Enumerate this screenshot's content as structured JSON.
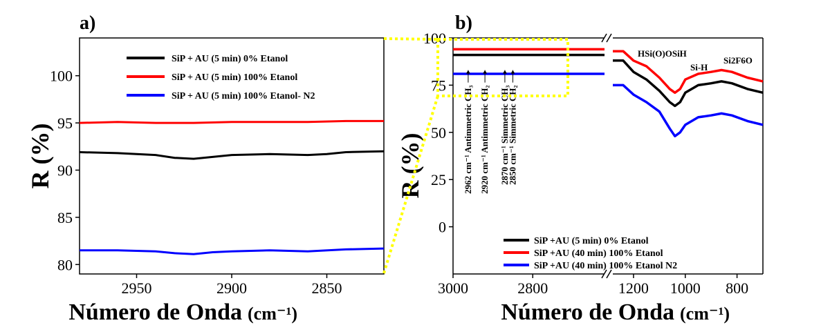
{
  "chart_data": [
    {
      "panel_label": "a)",
      "type": "line",
      "xlabel": "Número de Onda",
      "xlabel_unit": "(cm⁻¹)",
      "ylabel": "R (%)",
      "xlim": [
        2980,
        2820
      ],
      "ylim": [
        79,
        104
      ],
      "x_ticks": [
        2950,
        2900,
        2850
      ],
      "y_ticks": [
        80,
        85,
        90,
        95,
        100
      ],
      "legend_position": "top-right",
      "series": [
        {
          "name": "SiP + AU  (5 min) 0% Etanol",
          "color": "#000000",
          "x": [
            2980,
            2960,
            2940,
            2930,
            2920,
            2910,
            2900,
            2880,
            2860,
            2850,
            2840,
            2820
          ],
          "y": [
            91.9,
            91.8,
            91.6,
            91.3,
            91.2,
            91.4,
            91.6,
            91.7,
            91.6,
            91.7,
            91.9,
            92.0
          ]
        },
        {
          "name": "SiP + AU (5 min) 100% Etanol",
          "color": "#ff0000",
          "x": [
            2980,
            2960,
            2940,
            2920,
            2900,
            2880,
            2860,
            2840,
            2820
          ],
          "y": [
            95.0,
            95.1,
            95.0,
            95.0,
            95.1,
            95.1,
            95.1,
            95.2,
            95.2
          ]
        },
        {
          "name": "SiP + AU (5 min) 100% Etanol- N2",
          "color": "#0000ff",
          "x": [
            2980,
            2960,
            2940,
            2930,
            2920,
            2910,
            2900,
            2880,
            2860,
            2840,
            2820
          ],
          "y": [
            81.5,
            81.5,
            81.4,
            81.2,
            81.1,
            81.3,
            81.4,
            81.5,
            81.4,
            81.6,
            81.7
          ]
        }
      ]
    },
    {
      "panel_label": "b)",
      "type": "line",
      "xlabel": "Número de Onda",
      "xlabel_unit": "(cm⁻¹)",
      "ylabel": "R (%)",
      "x_segments": [
        [
          3000,
          2620
        ],
        [
          1280,
          700
        ]
      ],
      "ylim": [
        -25,
        100
      ],
      "x_ticks": [
        3000,
        2800,
        1200,
        1000,
        800
      ],
      "y_ticks": [
        0,
        25,
        50,
        75,
        100
      ],
      "legend_position": "bottom-right",
      "annotations": [
        "HSi(O)OSiH",
        "Si-H",
        "Si2F6O"
      ],
      "vertical_labels": [
        {
          "text": "2962 cm⁻¹ Antimmetric CH₃",
          "x": 2962
        },
        {
          "text": "2920 cm⁻¹ Antimmetric CH₂",
          "x": 2920
        },
        {
          "text": "2870 cm⁻¹ Simmetric CH₃",
          "x": 2870
        },
        {
          "text": "2850 cm⁻¹ Simmetric CH₂",
          "x": 2850
        }
      ],
      "series": [
        {
          "name": "SiP +AU (5 min) 0% Etanol",
          "color": "#000000",
          "x": [
            3000,
            2800,
            2620,
            1280,
            1240,
            1200,
            1150,
            1100,
            1060,
            1040,
            1020,
            1000,
            950,
            900,
            860,
            820,
            760,
            700
          ],
          "y": [
            91,
            91,
            91,
            88,
            88,
            82,
            78,
            72,
            66,
            64,
            66,
            71,
            75,
            76,
            77,
            76,
            73,
            71
          ]
        },
        {
          "name": "SiP +AU (40 min) 100% Etanol",
          "color": "#ff0000",
          "x": [
            3000,
            2800,
            2620,
            1280,
            1240,
            1200,
            1150,
            1100,
            1060,
            1040,
            1020,
            1000,
            950,
            900,
            860,
            820,
            760,
            700
          ],
          "y": [
            94,
            94,
            94,
            93,
            93,
            88,
            85,
            79,
            73,
            71,
            73,
            78,
            81,
            82,
            83,
            82,
            79,
            77
          ]
        },
        {
          "name": "SiP +AU (40 min) 100% Etanol N2",
          "color": "#0000ff",
          "x": [
            3000,
            2800,
            2620,
            1280,
            1240,
            1200,
            1150,
            1100,
            1060,
            1040,
            1020,
            1000,
            950,
            900,
            860,
            820,
            760,
            700
          ],
          "y": [
            81,
            81,
            81,
            75,
            75,
            70,
            66,
            61,
            52,
            48,
            50,
            54,
            58,
            59,
            60,
            59,
            56,
            54
          ]
        }
      ]
    }
  ]
}
